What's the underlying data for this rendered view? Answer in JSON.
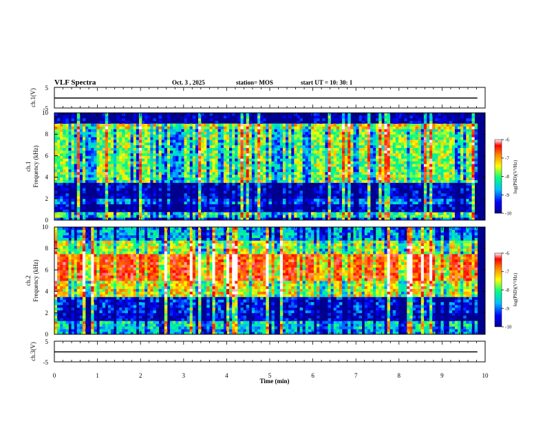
{
  "header": {
    "title": "VLF Spectra",
    "date": "Oct. 3 , 2025",
    "station": "station= MOS",
    "start": "start  UT =   10: 30: 1"
  },
  "chart_data": [
    {
      "type": "line",
      "name": "ch.1 waveform",
      "ylabel": "ch.1(V)",
      "ylim": [
        -5,
        5
      ],
      "yticks": [
        "5",
        "-5"
      ],
      "x_extent": [
        0,
        9.82
      ],
      "level": 0
    },
    {
      "type": "heatmap",
      "name": "ch.1 spectrogram",
      "ylabel_line1": "ch.1",
      "ylabel_line2": "Frequency (kHz)",
      "ylim": [
        0,
        10
      ],
      "yticks": [
        "0",
        "2",
        "4",
        "6",
        "8",
        "10"
      ],
      "x_extent": [
        0,
        9.82
      ],
      "bands": [
        {
          "f": [
            0,
            0.3
          ],
          "level": 0.2
        },
        {
          "f": [
            0.3,
            0.7
          ],
          "level": 0.45
        },
        {
          "f": [
            0.7,
            1.5
          ],
          "level": 0.08
        },
        {
          "f": [
            1.5,
            2.0
          ],
          "level": 0.25
        },
        {
          "f": [
            2.0,
            3.5
          ],
          "level": 0.08
        },
        {
          "f": [
            3.5,
            8.5
          ],
          "level": 0.5
        },
        {
          "f": [
            8.5,
            9.0
          ],
          "level": 0.6
        },
        {
          "f": [
            9.0,
            10.0
          ],
          "level": 0.05
        }
      ],
      "colorbar": {
        "label": "log(PSD)(V²/Hz)",
        "ticks": [
          "-6",
          "-7",
          "-8",
          "-9",
          "-10"
        ],
        "range": [
          -10,
          -6
        ]
      }
    },
    {
      "type": "heatmap",
      "name": "ch.2 spectrogram",
      "ylabel_line1": "ch.2",
      "ylabel_line2": "Frequency (kHz)",
      "ylim": [
        0,
        10
      ],
      "yticks": [
        "0",
        "2",
        "4",
        "6",
        "8",
        "10"
      ],
      "x_extent": [
        0,
        9.82
      ],
      "bands": [
        {
          "f": [
            0,
            0.4
          ],
          "level": 0.3
        },
        {
          "f": [
            0.4,
            1.3
          ],
          "level": 0.35
        },
        {
          "f": [
            1.3,
            2.0
          ],
          "level": 0.08
        },
        {
          "f": [
            2.0,
            3.5
          ],
          "level": 0.15
        },
        {
          "f": [
            3.5,
            5.0
          ],
          "level": 0.6
        },
        {
          "f": [
            5.0,
            7.5
          ],
          "level": 0.8
        },
        {
          "f": [
            7.5,
            8.8
          ],
          "level": 0.55
        },
        {
          "f": [
            8.8,
            10.0
          ],
          "level": 0.3
        }
      ],
      "colorbar": {
        "label": "log(PSD)(V²/Hz)",
        "ticks": [
          "-6",
          "-7",
          "-8",
          "-9",
          "-10"
        ],
        "range": [
          -10,
          -6
        ]
      }
    },
    {
      "type": "line",
      "name": "ch.3 waveform",
      "ylabel": "ch.3(V)",
      "ylim": [
        -5,
        5
      ],
      "yticks": [
        "5",
        "-5"
      ],
      "x_extent": [
        0,
        9.82
      ],
      "level": 0
    }
  ],
  "xaxis": {
    "label": "Time  (min)",
    "range": [
      0,
      10
    ],
    "ticks": [
      "0",
      "1",
      "2",
      "3",
      "4",
      "5",
      "6",
      "7",
      "8",
      "9",
      "10"
    ]
  },
  "colors": {
    "colormap": [
      "#00008f",
      "#0000ff",
      "#00bfff",
      "#00ff80",
      "#ffff00",
      "#ff8000",
      "#ff0000",
      "#ffffff"
    ]
  }
}
